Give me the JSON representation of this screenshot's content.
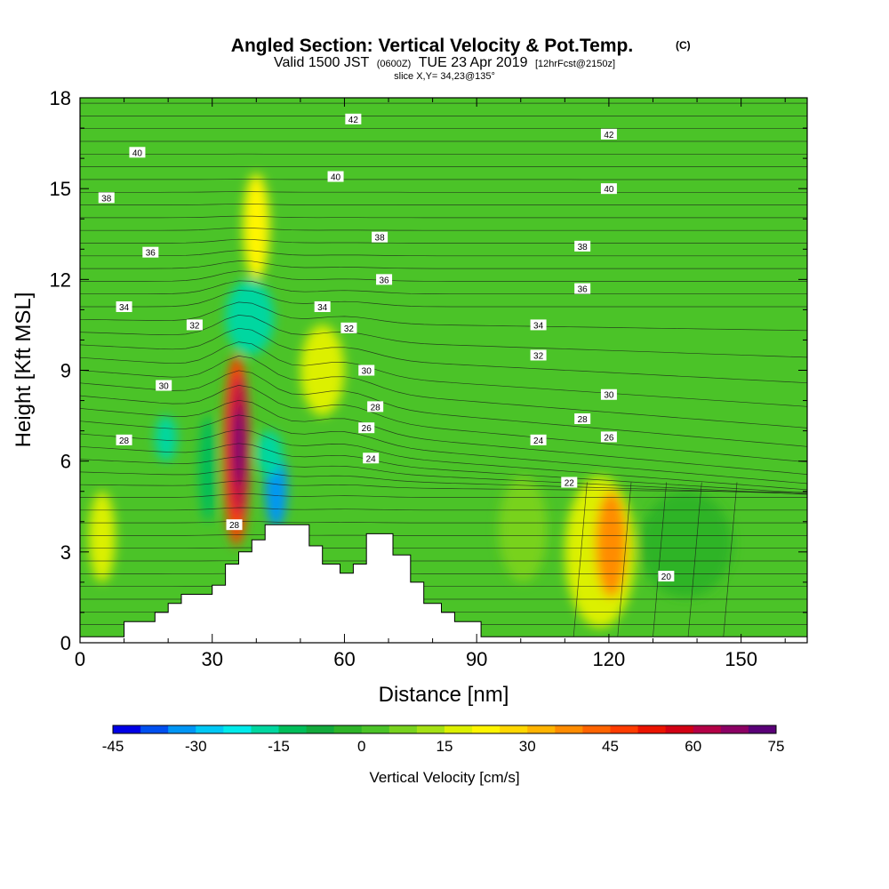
{
  "chart_data": {
    "type": "heatmap",
    "title": "Angled Section: Vertical Velocity & Pot.Temp.",
    "title_unit": "(C)",
    "subtitle_parts": {
      "valid": "Valid 1500 JST",
      "zulu": "(0600Z)",
      "date": "TUE 23 Apr 2019",
      "forecast": "[12hrFcst@2150z]"
    },
    "slice_text": "slice X,Y= 34,23@135°",
    "xlabel": "Distance [nm]",
    "ylabel": "Height [Kft MSL]",
    "xlim": [
      0,
      165
    ],
    "ylim": [
      0,
      18
    ],
    "x_ticks": [
      "0",
      "30",
      "60",
      "90",
      "120",
      "150"
    ],
    "y_ticks": [
      "0",
      "3",
      "6",
      "9",
      "12",
      "15",
      "18"
    ],
    "colorbar": {
      "title": "Vertical Velocity [cm/s]",
      "levels": [
        -45,
        -40,
        -35,
        -30,
        -25,
        -20,
        -15,
        -10,
        -5,
        0,
        5,
        10,
        15,
        20,
        25,
        30,
        35,
        40,
        45,
        50,
        55,
        60,
        65,
        70,
        75
      ],
      "tick_labels": [
        "-45",
        "-30",
        "-15",
        "0",
        "15",
        "30",
        "45",
        "60",
        "75"
      ],
      "colors": [
        "#0000e6",
        "#0050f0",
        "#0096f5",
        "#00c8f5",
        "#00ebeb",
        "#00d7a0",
        "#00be5a",
        "#12aa3c",
        "#2eb428",
        "#4bc328",
        "#78d21e",
        "#a5e114",
        "#dcf000",
        "#fff500",
        "#ffd700",
        "#ffb400",
        "#ff8c00",
        "#ff6400",
        "#ff3c00",
        "#eb1400",
        "#d20014",
        "#b40046",
        "#8c0064",
        "#5a0078"
      ]
    },
    "background_level": 0,
    "velocity_cells": [
      {
        "x0": 32.5,
        "x1": 38.5,
        "y0": 3.2,
        "y1": 9.5,
        "value": 45
      },
      {
        "x0": 34,
        "x1": 38,
        "y0": 4.2,
        "y1": 8.8,
        "value": 60
      },
      {
        "x0": 35,
        "x1": 37,
        "y0": 5.2,
        "y1": 7.8,
        "value": 70
      },
      {
        "x0": 42,
        "x1": 47,
        "y0": 3.8,
        "y1": 6.4,
        "value": -35
      },
      {
        "x0": 40,
        "x1": 46,
        "y0": 5.5,
        "y1": 7.0,
        "value": -20
      },
      {
        "x0": 33,
        "x1": 44,
        "y0": 9.5,
        "y1": 12.0,
        "value": -20
      },
      {
        "x0": 37,
        "x1": 43,
        "y0": 12.0,
        "y1": 15.5,
        "value": 20
      },
      {
        "x0": 50,
        "x1": 60,
        "y0": 7.5,
        "y1": 10.5,
        "value": 15
      },
      {
        "x0": 110,
        "x1": 126,
        "y0": 0.5,
        "y1": 5.5,
        "value": 15
      },
      {
        "x0": 117,
        "x1": 124,
        "y0": 1.5,
        "y1": 5.0,
        "value": 35
      },
      {
        "x0": 27,
        "x1": 31,
        "y0": 4.0,
        "y1": 7.5,
        "value": -15
      },
      {
        "x0": 17,
        "x1": 22,
        "y0": 6.0,
        "y1": 7.5,
        "value": -20
      },
      {
        "x0": 127,
        "x1": 148,
        "y0": 1.5,
        "y1": 5.0,
        "value": -5
      },
      {
        "x0": 95,
        "x1": 106,
        "y0": 2.0,
        "y1": 5.5,
        "value": 5
      },
      {
        "x0": 2,
        "x1": 8,
        "y0": 2.0,
        "y1": 5.0,
        "value": 15
      }
    ],
    "terrain_profile": [
      [
        0,
        0.2
      ],
      [
        10,
        0.2
      ],
      [
        10,
        0.7
      ],
      [
        17,
        0.7
      ],
      [
        17,
        1.0
      ],
      [
        20,
        1.0
      ],
      [
        20,
        1.3
      ],
      [
        23,
        1.3
      ],
      [
        23,
        1.6
      ],
      [
        30,
        1.6
      ],
      [
        30,
        1.9
      ],
      [
        33,
        1.9
      ],
      [
        33,
        2.6
      ],
      [
        36,
        2.6
      ],
      [
        36,
        3.0
      ],
      [
        39,
        3.0
      ],
      [
        39,
        3.4
      ],
      [
        42,
        3.4
      ],
      [
        42,
        3.9
      ],
      [
        52,
        3.9
      ],
      [
        52,
        3.2
      ],
      [
        55,
        3.2
      ],
      [
        55,
        2.6
      ],
      [
        59,
        2.6
      ],
      [
        59,
        2.3
      ],
      [
        62,
        2.3
      ],
      [
        62,
        2.6
      ],
      [
        65,
        2.6
      ],
      [
        65,
        3.6
      ],
      [
        71,
        3.6
      ],
      [
        71,
        2.9
      ],
      [
        75,
        2.9
      ],
      [
        75,
        2.0
      ],
      [
        78,
        2.0
      ],
      [
        78,
        1.3
      ],
      [
        82,
        1.3
      ],
      [
        82,
        1.0
      ],
      [
        85,
        1.0
      ],
      [
        85,
        0.7
      ],
      [
        91,
        0.7
      ],
      [
        91,
        0.2
      ],
      [
        165,
        0.2
      ]
    ],
    "isentrope_labels": [
      {
        "text": "42",
        "x": 62,
        "y": 17.3
      },
      {
        "text": "42",
        "x": 120,
        "y": 16.8
      },
      {
        "text": "40",
        "x": 13,
        "y": 16.2
      },
      {
        "text": "40",
        "x": 58,
        "y": 15.4
      },
      {
        "text": "40",
        "x": 120,
        "y": 15.0
      },
      {
        "text": "38",
        "x": 6,
        "y": 14.7
      },
      {
        "text": "38",
        "x": 68,
        "y": 13.4
      },
      {
        "text": "38",
        "x": 114,
        "y": 13.1
      },
      {
        "text": "36",
        "x": 16,
        "y": 12.9
      },
      {
        "text": "36",
        "x": 69,
        "y": 12.0
      },
      {
        "text": "36",
        "x": 114,
        "y": 11.7
      },
      {
        "text": "34",
        "x": 10,
        "y": 11.1
      },
      {
        "text": "34",
        "x": 55,
        "y": 11.1
      },
      {
        "text": "34",
        "x": 104,
        "y": 10.5
      },
      {
        "text": "32",
        "x": 26,
        "y": 10.5
      },
      {
        "text": "32",
        "x": 61,
        "y": 10.4
      },
      {
        "text": "32",
        "x": 104,
        "y": 9.5
      },
      {
        "text": "30",
        "x": 19,
        "y": 8.5
      },
      {
        "text": "30",
        "x": 65,
        "y": 9.0
      },
      {
        "text": "30",
        "x": 120,
        "y": 8.2
      },
      {
        "text": "28",
        "x": 10,
        "y": 6.7
      },
      {
        "text": "28",
        "x": 67,
        "y": 7.8
      },
      {
        "text": "28",
        "x": 114,
        "y": 7.4
      },
      {
        "text": "26",
        "x": 65,
        "y": 7.1
      },
      {
        "text": "26",
        "x": 120,
        "y": 6.8
      },
      {
        "text": "24",
        "x": 66,
        "y": 6.1
      },
      {
        "text": "24",
        "x": 104,
        "y": 6.7
      },
      {
        "text": "28",
        "x": 35,
        "y": 3.9
      },
      {
        "text": "22",
        "x": 111,
        "y": 5.3
      },
      {
        "text": "20",
        "x": 133,
        "y": 2.2
      }
    ]
  }
}
